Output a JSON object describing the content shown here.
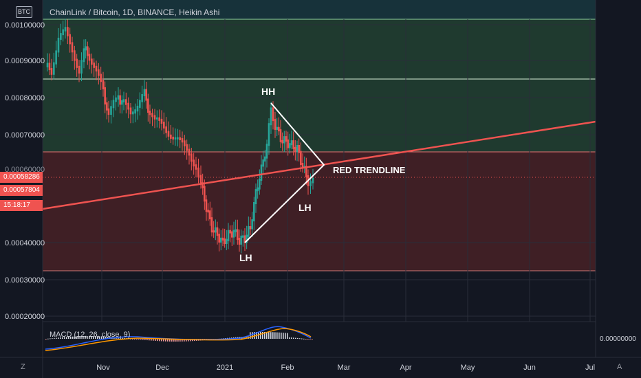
{
  "symbol_badge": "BTC",
  "title": "ChainLink / Bitcoin, 1D, BINANCE, Heikin Ashi",
  "price_axis": {
    "labels": [
      "0.00100000",
      "0.00090000",
      "0.00080000",
      "0.00070000",
      "0.00040000",
      "0.00030000",
      "0.00020000"
    ]
  },
  "price_tags": {
    "current": "0.00058286",
    "secondary": "0.00057804",
    "countdown": "15:18:17",
    "partial": "0.00060000"
  },
  "time_axis": {
    "labels": [
      "Nov",
      "Dec",
      "2021",
      "Jan",
      "Feb",
      "Mar",
      "Apr",
      "May",
      "Jun",
      "Jul"
    ]
  },
  "annotations": {
    "hh": "HH",
    "lh_left": "LH",
    "lh_right": "LH",
    "trendline": "RED TRENDLINE"
  },
  "macd": {
    "label": "MACD (12, 26, close, 9)",
    "value": "0.00000000"
  },
  "corners": {
    "bottom_left": "Z",
    "bottom_right": "A"
  },
  "colors": {
    "background": "#131722",
    "up": "#26a69a",
    "down": "#ef5350",
    "green_zone": "#2a4a3a",
    "red_zone": "#4a2328",
    "trendline": "#ef5350",
    "annotation": "#ffffff"
  }
}
